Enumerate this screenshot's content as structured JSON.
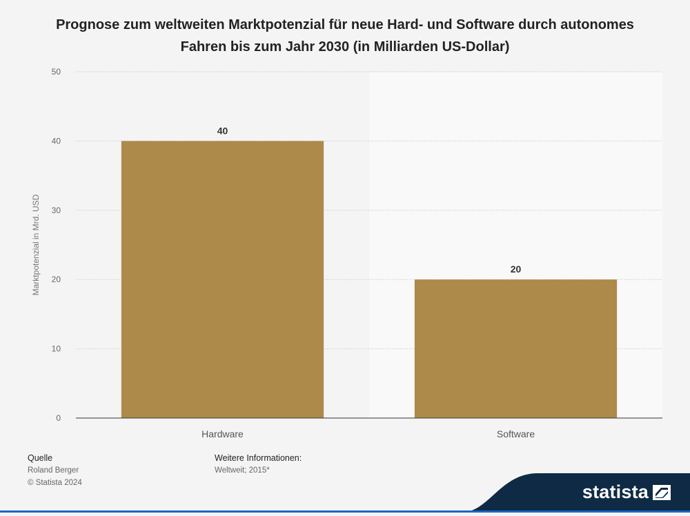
{
  "chart_data": {
    "type": "bar",
    "title": "Prognose zum weltweiten Marktpotenzial für neue Hard- und Software durch autonomes Fahren bis zum Jahr 2030 (in Milliarden US-Dollar)",
    "ylabel": "Marktpotenzial in Mrd. USD",
    "xlabel": "",
    "categories": [
      "Hardware",
      "Software"
    ],
    "values": [
      40,
      20
    ],
    "data_labels": [
      "40",
      "20"
    ],
    "ylim": [
      0,
      50
    ],
    "yticks": [
      0,
      10,
      20,
      30,
      40,
      50
    ],
    "grid": true,
    "bar_color": "#ad8a4a"
  },
  "footer": {
    "source_label": "Quelle",
    "source_value": "Roland Berger",
    "copyright": "© Statista 2024",
    "info_label": "Weitere Informationen:",
    "info_value": "Weltweit; 2015*"
  },
  "brand": {
    "name": "statista",
    "color": "#0f2a44"
  }
}
